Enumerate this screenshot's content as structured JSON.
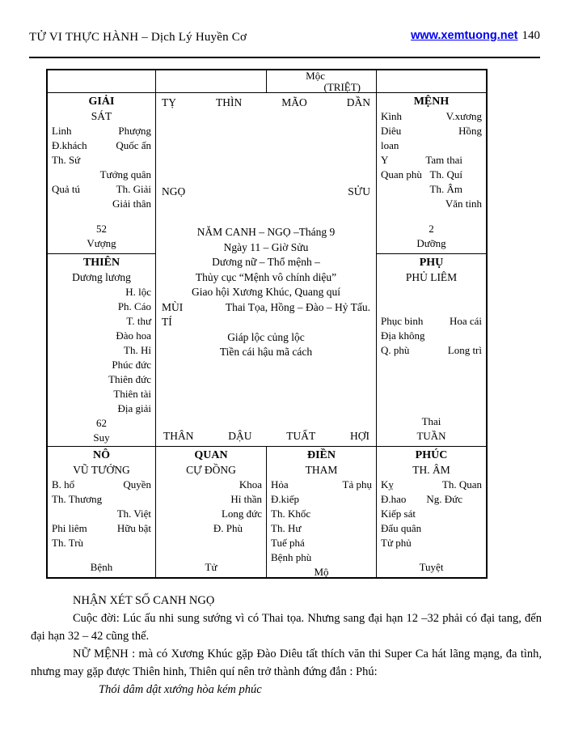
{
  "header": {
    "title": "TỬ VI THỰC HÀNH – Dịch Lý Huyền Cơ",
    "link": "www.xemtuong.net",
    "page": "140",
    "link_color": "#0000f0"
  },
  "chart": {
    "triet": {
      "line1": "Mộc",
      "line2": "(TRIỆT)"
    },
    "center": {
      "top_branches": [
        "TỴ",
        "THÌN",
        "MÃO",
        "DẦN"
      ],
      "mid_left": "NGỌ",
      "mid_right": "SỬU",
      "info": [
        "NĂM CANH – NGỌ –Tháng 9",
        "Ngày 11 – Giờ Sửu",
        "Dương nữ – Thổ mệnh –",
        "Thủy cục “Mệnh vô chính diệu”",
        "Giao hội Xương Khúc, Quang quí"
      ],
      "mui_label": "MÙI",
      "mui_text": "Thai Tọa, Hồng – Đào – Hỷ Tấu.",
      "ti_label": "TÍ",
      "info2": [
        "Giáp lộc củng lộc",
        "Tiền cái hậu mã cách"
      ],
      "bottom_branches": [
        "THÂN",
        "DẬU",
        "TUẤT",
        "HỢI"
      ]
    },
    "cells": {
      "giai": {
        "title": "GIẢI",
        "subtitle": "SÁT",
        "lines": [
          {
            "l": "Linh",
            "r": "Phượng"
          },
          {
            "l": "Đ.khách",
            "r": "Quốc ấn"
          },
          {
            "l": "Th. Sứ"
          },
          {
            "r": "Tướng quân"
          },
          {
            "l": "Quả tú",
            "r": "Th. Giải"
          },
          {
            "r": "Giải thân"
          }
        ],
        "bottom": [
          "52",
          "Vượng"
        ]
      },
      "menh": {
        "title": "MỆNH",
        "lines": [
          {
            "l": "Kình",
            "r": "V.xương"
          },
          {
            "l": "Diêu",
            "r": "Hồng"
          },
          {
            "l": "loan"
          },
          {
            "l": "Y",
            "rc": "Tam thai"
          },
          {
            "l": "Quan phù",
            "rc": "Th. Quí"
          },
          {
            "rc": "Th. Âm"
          },
          {
            "r": "Văn tinh"
          }
        ],
        "bottom": [
          "2",
          "Dưỡng"
        ]
      },
      "thien": {
        "title": "THIÊN",
        "subtitle": "Dương lương",
        "lines": [
          {
            "r": "H. lộc"
          },
          {
            "r": "Ph. Cáo"
          },
          {
            "r": "T. thư"
          },
          {
            "r": "Đào hoa"
          },
          {
            "r": "Th. Hỉ"
          },
          {
            "r": "Phúc đức"
          },
          {
            "r": "Thiên đức"
          },
          {
            "r": "Thiên tài"
          },
          {
            "r": "Địa giải"
          }
        ],
        "bottom": [
          "62",
          "Suy"
        ]
      },
      "phu": {
        "title": "PHỤ",
        "subtitle": "PHỦ LIÊM",
        "lines": [
          {
            "c": ""
          },
          {
            "c": ""
          },
          {
            "l": "Phục binh",
            "r": "Hoa cái"
          },
          {
            "l": "Địa không"
          },
          {
            "l": "Q. phù",
            "r": "Long trì"
          }
        ],
        "bottom": [
          "Thai",
          "TUẦN"
        ]
      },
      "no": {
        "title": "NÔ",
        "subtitle": "VŨ TƯỚNG",
        "lines": [
          {
            "l": "B. hổ",
            "r": "Quyền"
          },
          {
            "l": "Th. Thương"
          },
          {
            "r": "Th. Việt"
          },
          {
            "l": "Phi liêm",
            "r": "Hữu bật"
          },
          {
            "l": "Th. Trù"
          }
        ],
        "bottom": [
          "Bệnh"
        ]
      },
      "quan": {
        "title": "QUAN",
        "subtitle": "CỰ ĐỒNG",
        "lines": [
          {
            "r": "Khoa"
          },
          {
            "r": "Hỉ thần"
          },
          {
            "r": "Long đức"
          },
          {
            "rc": "Đ. Phù"
          }
        ],
        "bottom": [
          "Tử"
        ]
      },
      "dien": {
        "title": "ĐIỀN",
        "subtitle": "THAM",
        "lines": [
          {
            "l": "Hỏa",
            "r": "Tả phụ"
          },
          {
            "l": "Đ.kiếp"
          },
          {
            "l": "Th. Khốc"
          },
          {
            "l": "Th. Hư"
          },
          {
            "l": "Tuế phá"
          },
          {
            "l": "Bệnh phù"
          }
        ],
        "bottom": [
          "Mộ"
        ]
      },
      "phuc": {
        "title": "PHÚC",
        "subtitle": "TH. ÂM",
        "lines": [
          {
            "l": "Kỵ",
            "r": "Th. Quan"
          },
          {
            "l": "Đ.hao",
            "rc": "Ng. Đức"
          },
          {
            "l": "Kiếp sát"
          },
          {
            "l": "Đẩu quân"
          },
          {
            "l": "Tử phủ"
          }
        ],
        "bottom": [
          "Tuyệt"
        ]
      }
    }
  },
  "notes": {
    "heading": "NHẬN XÉT SỐ CANH NGỌ",
    "p1": "Cuộc đời: Lúc ấu nhi sung sướng vì có Thai tọa. Nhưng sang đại hạn 12 –32  phải có đại tang, đến đại hạn 32 – 42 cũng thế.",
    "p2": "NỮ MỆNH : mà có Xương Khúc gặp Đào Diêu tất thích văn thi Super Ca hát lãng mạng, đa tình, nhưng may gặp được Thiên hinh, Thiên quí nên trở thành đứng đắn : Phú:",
    "quote": "Thói dâm dật xướng hòa kém phúc"
  }
}
